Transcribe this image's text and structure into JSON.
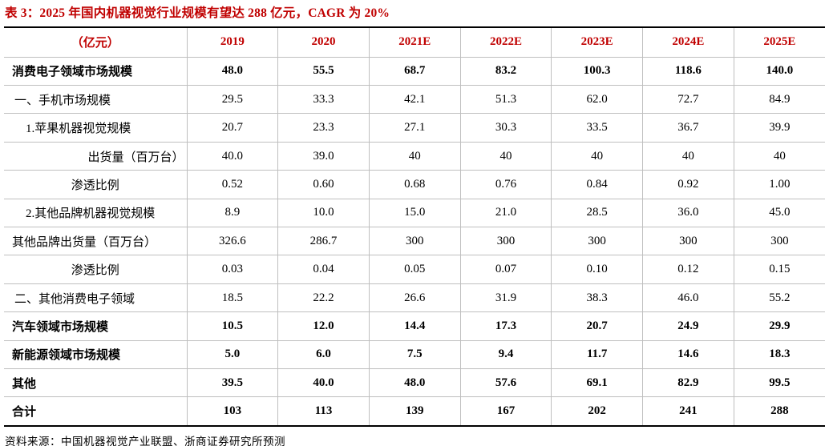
{
  "title": "表 3：2025 年国内机器视觉行业规模有望达 288 亿元，CAGR 为 20%",
  "source": "资料来源：中国机器视觉产业联盟、浙商证券研究所预测",
  "colors": {
    "accent_red": "#C00000",
    "grid_gray": "#BFBFBF",
    "rule_black": "#000000"
  },
  "table": {
    "columns": [
      "（亿元）",
      "2019",
      "2020",
      "2021E",
      "2022E",
      "2023E",
      "2024E",
      "2025E"
    ],
    "rows": [
      {
        "label": "消费电子领域市场规模",
        "bold": true,
        "label_style": "default",
        "values": [
          "48.0",
          "55.5",
          "68.7",
          "83.2",
          "100.3",
          "118.6",
          "140.0"
        ]
      },
      {
        "label": "一、手机市场规模",
        "bold": false,
        "label_style": "sub1",
        "values": [
          "29.5",
          "33.3",
          "42.1",
          "51.3",
          "62.0",
          "72.7",
          "84.9"
        ]
      },
      {
        "label": "1.苹果机器视觉规模",
        "bold": false,
        "label_style": "sub2",
        "values": [
          "20.7",
          "23.3",
          "27.1",
          "30.3",
          "33.5",
          "36.7",
          "39.9"
        ]
      },
      {
        "label": "出货量（百万台）",
        "bold": false,
        "label_style": "right",
        "values": [
          "40.0",
          "39.0",
          "40",
          "40",
          "40",
          "40",
          "40"
        ]
      },
      {
        "label": "渗透比例",
        "bold": false,
        "label_style": "center",
        "values": [
          "0.52",
          "0.60",
          "0.68",
          "0.76",
          "0.84",
          "0.92",
          "1.00"
        ]
      },
      {
        "label": "2.其他品牌机器视觉规模",
        "bold": false,
        "label_style": "sub2",
        "values": [
          "8.9",
          "10.0",
          "15.0",
          "21.0",
          "28.5",
          "36.0",
          "45.0"
        ]
      },
      {
        "label": "其他品牌出货量（百万台）",
        "bold": false,
        "label_style": "default",
        "values": [
          "326.6",
          "286.7",
          "300",
          "300",
          "300",
          "300",
          "300"
        ]
      },
      {
        "label": "渗透比例",
        "bold": false,
        "label_style": "center",
        "values": [
          "0.03",
          "0.04",
          "0.05",
          "0.07",
          "0.10",
          "0.12",
          "0.15"
        ]
      },
      {
        "label": "二、其他消费电子领域",
        "bold": false,
        "label_style": "sub1",
        "values": [
          "18.5",
          "22.2",
          "26.6",
          "31.9",
          "38.3",
          "46.0",
          "55.2"
        ]
      },
      {
        "label": "汽车领域市场规模",
        "bold": true,
        "label_style": "default",
        "values": [
          "10.5",
          "12.0",
          "14.4",
          "17.3",
          "20.7",
          "24.9",
          "29.9"
        ]
      },
      {
        "label": "新能源领域市场规模",
        "bold": true,
        "label_style": "default",
        "values": [
          "5.0",
          "6.0",
          "7.5",
          "9.4",
          "11.7",
          "14.6",
          "18.3"
        ]
      },
      {
        "label": "其他",
        "bold": true,
        "label_style": "default",
        "values": [
          "39.5",
          "40.0",
          "48.0",
          "57.6",
          "69.1",
          "82.9",
          "99.5"
        ]
      },
      {
        "label": "合计",
        "bold": true,
        "label_style": "default",
        "values": [
          "103",
          "113",
          "139",
          "167",
          "202",
          "241",
          "288"
        ]
      }
    ]
  }
}
